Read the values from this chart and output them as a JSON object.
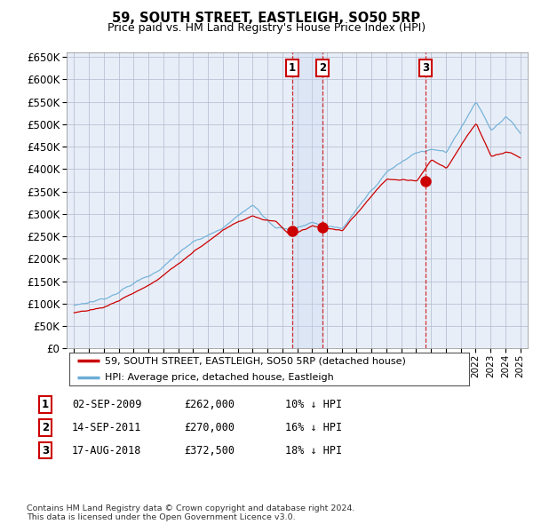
{
  "title": "59, SOUTH STREET, EASTLEIGH, SO50 5RP",
  "subtitle": "Price paid vs. HM Land Registry's House Price Index (HPI)",
  "ylim": [
    0,
    660000
  ],
  "yticks": [
    0,
    50000,
    100000,
    150000,
    200000,
    250000,
    300000,
    350000,
    400000,
    450000,
    500000,
    550000,
    600000,
    650000
  ],
  "legend_label_red": "59, SOUTH STREET, EASTLEIGH, SO50 5RP (detached house)",
  "legend_label_blue": "HPI: Average price, detached house, Eastleigh",
  "transactions": [
    {
      "num": 1,
      "date": "02-SEP-2009",
      "price": "£262,000",
      "hpi": "10% ↓ HPI",
      "year": 2009.67
    },
    {
      "num": 2,
      "date": "14-SEP-2011",
      "price": "£270,000",
      "hpi": "16% ↓ HPI",
      "year": 2011.71
    },
    {
      "num": 3,
      "date": "17-AUG-2018",
      "price": "£372,500",
      "hpi": "18% ↓ HPI",
      "year": 2018.63
    }
  ],
  "transaction_values": [
    262000,
    270000,
    372500
  ],
  "footnote": "Contains HM Land Registry data © Crown copyright and database right 2024.\nThis data is licensed under the Open Government Licence v3.0.",
  "hpi_color": "#6baed6",
  "price_color": "#cc0000",
  "background_color": "#e8eef8",
  "grid_color": "#b0b8cc",
  "vline_color": "#cc0000",
  "span_color": "#c8d8f0"
}
